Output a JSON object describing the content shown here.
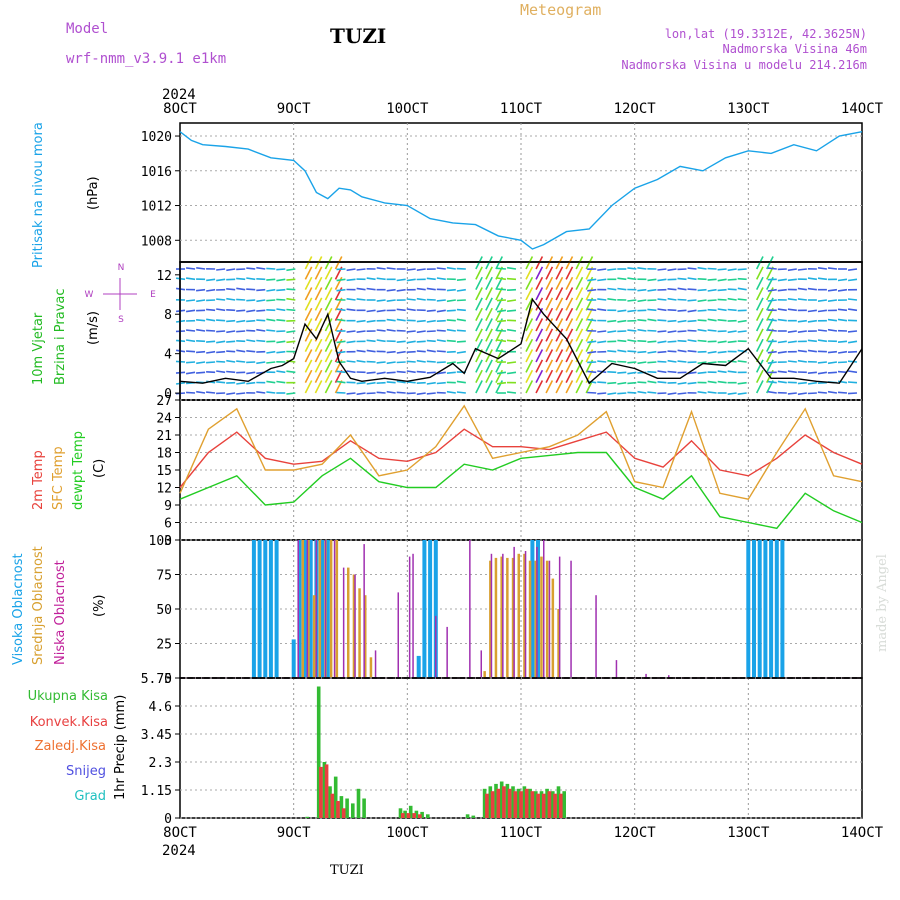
{
  "header": {
    "model_label": "Model",
    "model_name": "wrf-nmm_v3.9.1 e1km",
    "station": "TUZI",
    "meteogram": "Meteogram",
    "coords": "lon,lat (19.3312E, 42.3625N)",
    "altitude": "Nadmorska Visina 46m",
    "model_altitude": "Nadmorska Visina u modelu 214.216m",
    "bottom_label": "TUZI",
    "made_by": "made by Angel"
  },
  "colors": {
    "pressure": "#1aa3e8",
    "temp2m": "#e8423c",
    "sfc": "#e0a030",
    "dewpt": "#22cc22",
    "high_cloud": "#1aa3e8",
    "mid_cloud": "#d8a030",
    "low_cloud": "#a030b0",
    "total_precip": "#33bb33",
    "conv_precip": "#e84040",
    "frozen_precip": "#ee7030",
    "snow": "#5050e0",
    "hail": "#20c0c0",
    "wind_axis_label": "#b040c0",
    "label_purple": "#b050d0",
    "meteogram_color": "#e0b060"
  },
  "x_axis": {
    "ticks": [
      "8OCT",
      "9OCT",
      "10OCT",
      "11OCT",
      "12OCT",
      "13OCT",
      "14OCT"
    ],
    "year": "2024"
  },
  "chart_data": [
    {
      "type": "line",
      "panel": "pressure",
      "ylabel_side": "Pritisak na nivou mora",
      "ylabel_unit": "(hPa)",
      "yticks": [
        "1020",
        "1016",
        "1012",
        "1008"
      ],
      "ylim": [
        1005.5,
        1021.5
      ],
      "x_days": [
        0,
        0.1,
        0.2,
        0.4,
        0.6,
        0.8,
        1.0,
        1.1,
        1.2,
        1.3,
        1.4,
        1.5,
        1.6,
        1.8,
        2.0,
        2.2,
        2.4,
        2.6,
        2.8,
        3.0,
        3.1,
        3.2,
        3.4,
        3.6,
        3.8,
        4.0,
        4.2,
        4.4,
        4.6,
        4.8,
        5.0,
        5.2,
        5.4,
        5.6,
        5.8,
        6.0
      ],
      "values": [
        1020.5,
        1019.5,
        1019.0,
        1018.8,
        1018.5,
        1017.5,
        1017.2,
        1016.0,
        1013.5,
        1012.8,
        1014.0,
        1013.8,
        1013.0,
        1012.3,
        1012.0,
        1010.5,
        1010.0,
        1009.8,
        1008.5,
        1008.0,
        1007.0,
        1007.5,
        1009.0,
        1009.3,
        1012.0,
        1014.0,
        1015.0,
        1016.5,
        1016.0,
        1017.5,
        1018.3,
        1018.0,
        1019.0,
        1018.3,
        1020.0,
        1020.5
      ]
    },
    {
      "type": "line",
      "panel": "wind",
      "ylabel_side_1": "10m Vjetar",
      "ylabel_side_2": "Brzina i Pravac",
      "ylabel_unit": "(m/s)",
      "compass": [
        "N",
        "W",
        "E",
        "S"
      ],
      "yticks": [
        "12",
        "8",
        "4",
        "0"
      ],
      "ylim": [
        -0.7,
        13.3
      ],
      "x_days": [
        0,
        0.2,
        0.4,
        0.6,
        0.8,
        0.9,
        1.0,
        1.1,
        1.2,
        1.3,
        1.4,
        1.5,
        1.6,
        1.8,
        2.0,
        2.2,
        2.4,
        2.5,
        2.6,
        2.8,
        3.0,
        3.1,
        3.2,
        3.4,
        3.6,
        3.8,
        4.0,
        4.2,
        4.4,
        4.6,
        4.8,
        5.0,
        5.2,
        5.4,
        5.6,
        5.8,
        6.0
      ],
      "values": [
        1.2,
        1.0,
        1.5,
        1.2,
        2.5,
        2.8,
        3.5,
        7.0,
        5.5,
        8.0,
        3.2,
        1.5,
        1.2,
        1.5,
        1.2,
        1.6,
        3.0,
        2.0,
        4.5,
        3.5,
        5.0,
        9.5,
        8.0,
        5.5,
        1.0,
        3.0,
        2.5,
        1.5,
        1.5,
        3.0,
        2.8,
        4.5,
        1.5,
        1.5,
        1.2,
        1.0,
        4.5
      ]
    },
    {
      "type": "line",
      "panel": "temperature",
      "ylabel_side_1": "2m Temp",
      "ylabel_side_2": "SFC Temp",
      "ylabel_side_3": "dewpt Temp",
      "ylabel_unit": "(C)",
      "yticks": [
        "27",
        "24",
        "21",
        "18",
        "15",
        "12",
        "9",
        "6",
        "3"
      ],
      "ylim": [
        3,
        27
      ],
      "x_days": [
        0,
        0.25,
        0.5,
        0.75,
        1.0,
        1.25,
        1.5,
        1.75,
        2.0,
        2.25,
        2.5,
        2.75,
        3.0,
        3.25,
        3.5,
        3.75,
        4.0,
        4.25,
        4.5,
        4.75,
        5.0,
        5.25,
        5.5,
        5.75,
        6.0
      ],
      "series": [
        {
          "name": "2m Temp",
          "values": [
            12,
            18,
            21.5,
            17,
            16,
            16.5,
            20,
            17,
            16.5,
            18,
            22,
            19,
            19,
            18.5,
            20,
            21.5,
            17,
            15.5,
            20,
            15,
            14,
            17,
            21,
            18,
            16
          ]
        },
        {
          "name": "SFC Temp",
          "values": [
            11,
            22,
            25.5,
            15,
            15,
            16,
            21,
            14,
            15,
            19,
            26,
            17,
            18,
            19,
            21,
            25,
            13,
            12,
            25,
            11,
            10,
            18,
            25.5,
            14,
            13
          ]
        },
        {
          "name": "dewpt Temp",
          "values": [
            10,
            12,
            14,
            9,
            9.5,
            14,
            17,
            13,
            12,
            12,
            16,
            15,
            17,
            17.5,
            18,
            18,
            12,
            10,
            14,
            7,
            6,
            5,
            11,
            8,
            6
          ]
        }
      ]
    },
    {
      "type": "bar",
      "panel": "cloud",
      "ylabel_side_1": "Visoka Oblacnost",
      "ylabel_side_2": "Srednja Oblacnost",
      "ylabel_side_3": "Niska Oblacnost",
      "ylabel_unit": "(%)",
      "yticks": [
        "100",
        "75",
        "50",
        "25",
        "0"
      ],
      "ylim": [
        0,
        100
      ],
      "series": [
        {
          "name": "Visoka Oblacnost",
          "x_days": [
            0.65,
            0.7,
            0.75,
            0.8,
            0.85,
            1.0,
            1.05,
            1.1,
            1.15,
            1.2,
            1.25,
            1.3,
            2.1,
            2.15,
            2.2,
            2.25,
            3.1,
            3.15,
            5.0,
            5.05,
            5.1,
            5.15,
            5.2,
            5.25,
            5.3
          ],
          "values": [
            100,
            100,
            100,
            100,
            100,
            28,
            100,
            100,
            100,
            100,
            100,
            100,
            16,
            100,
            100,
            100,
            100,
            100,
            100,
            100,
            100,
            100,
            100,
            100,
            100
          ]
        },
        {
          "name": "Srednja Oblacnost",
          "x_days": [
            1.08,
            1.13,
            1.18,
            1.23,
            1.28,
            1.33,
            1.38,
            1.48,
            1.53,
            1.58,
            1.63,
            1.68,
            2.68,
            2.73,
            2.78,
            2.83,
            2.88,
            2.93,
            2.98,
            3.03,
            3.08,
            3.13,
            3.18,
            3.23,
            3.28,
            3.33
          ],
          "values": [
            100,
            100,
            60,
            100,
            100,
            100,
            100,
            80,
            75,
            65,
            60,
            15,
            5,
            85,
            87,
            88,
            87,
            87,
            90,
            90,
            85,
            85,
            88,
            85,
            72,
            50
          ]
        },
        {
          "name": "Niska Oblacnost",
          "x_days": [
            1.04,
            1.12,
            1.2,
            1.28,
            1.36,
            1.44,
            1.54,
            1.62,
            1.72,
            1.92,
            2.02,
            2.05,
            2.25,
            2.35,
            2.55,
            2.65,
            2.74,
            2.84,
            2.94,
            3.04,
            3.14,
            3.2,
            3.25,
            3.34,
            3.44,
            3.66,
            3.84,
            4.1,
            4.3
          ],
          "values": [
            100,
            100,
            100,
            100,
            100,
            80,
            75,
            97,
            20,
            62,
            88,
            90,
            45,
            37,
            100,
            20,
            90,
            90,
            95,
            92,
            95,
            100,
            85,
            88,
            85,
            60,
            13,
            3,
            2
          ]
        }
      ]
    },
    {
      "type": "bar",
      "panel": "precipitation",
      "ylabel_unit": "1hr Precip (mm)",
      "legend": [
        "Ukupna Kisa",
        "Konvek.Kisa",
        "Zaledj.Kisa",
        "Snijeg",
        "Grad"
      ],
      "yticks": [
        "5.75",
        "4.6",
        "3.45",
        "2.3",
        "1.15",
        "0"
      ],
      "ylim": [
        0,
        5.75
      ],
      "series": [
        {
          "name": "Ukupna Kisa",
          "x_days": [
            1.12,
            1.22,
            1.27,
            1.32,
            1.37,
            1.42,
            1.47,
            1.52,
            1.57,
            1.62,
            1.94,
            1.98,
            2.03,
            2.08,
            2.13,
            2.18,
            2.53,
            2.58,
            2.68,
            2.73,
            2.78,
            2.83,
            2.88,
            2.93,
            2.98,
            3.03,
            3.08,
            3.13,
            3.18,
            3.23,
            3.28,
            3.33,
            3.38
          ],
          "values": [
            0.05,
            5.4,
            2.3,
            1.3,
            1.7,
            0.9,
            0.8,
            0.6,
            1.2,
            0.8,
            0.4,
            0.3,
            0.5,
            0.3,
            0.25,
            0.15,
            0.15,
            0.1,
            1.2,
            1.3,
            1.4,
            1.5,
            1.4,
            1.3,
            1.2,
            1.3,
            1.2,
            1.1,
            1.1,
            1.2,
            1.1,
            1.3,
            1.1
          ]
        },
        {
          "name": "Konvek.Kisa",
          "x_days": [
            1.24,
            1.29,
            1.34,
            1.39,
            1.44,
            1.96,
            2.01,
            2.06,
            2.11,
            2.7,
            2.75,
            2.8,
            2.85,
            2.9,
            2.95,
            3.0,
            3.05,
            3.1,
            3.15,
            3.2,
            3.25,
            3.3,
            3.35
          ],
          "values": [
            2.1,
            2.2,
            1.0,
            0.7,
            0.4,
            0.2,
            0.2,
            0.2,
            0.15,
            1.0,
            1.1,
            1.2,
            1.3,
            1.2,
            1.1,
            1.1,
            1.2,
            1.1,
            1.0,
            1.0,
            1.1,
            1.0,
            1.0
          ]
        }
      ]
    }
  ]
}
